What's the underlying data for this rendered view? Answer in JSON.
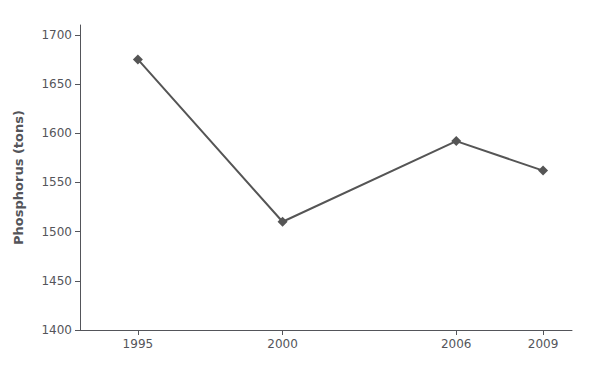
{
  "chart_data": {
    "type": "line",
    "ylabel": "Phosphorus (tons)",
    "x": [
      1995,
      2000,
      2006,
      2009
    ],
    "values": [
      1675,
      1510,
      1592,
      1562
    ],
    "color": "#555555",
    "marker": "diamond",
    "xlim": [
      1993,
      2010
    ],
    "xticks": [
      1995,
      2000,
      2006,
      2009
    ],
    "ylim": [
      1400,
      1710
    ],
    "yticks": [
      1400,
      1450,
      1500,
      1550,
      1600,
      1650,
      1700
    ],
    "grid": false
  }
}
